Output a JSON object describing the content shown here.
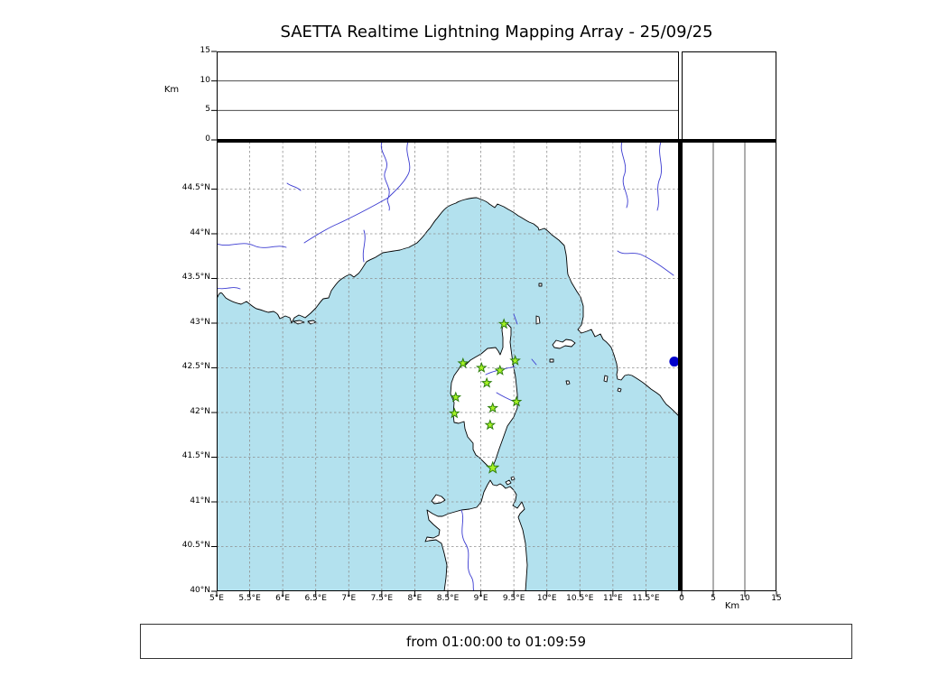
{
  "title": "SAETTA Realtime Lightning Mapping Array - 25/09/25",
  "footer": {
    "text": "from 01:00:00 to 01:09:59"
  },
  "top_panel": {
    "axis_label": "Km",
    "range_km": [
      0,
      15
    ],
    "ticks": [
      {
        "v": 0,
        "label": "0"
      },
      {
        "v": 5,
        "label": "5"
      },
      {
        "v": 10,
        "label": "10"
      },
      {
        "v": 15,
        "label": "15"
      }
    ],
    "gridlines": [
      5,
      10
    ]
  },
  "right_panel": {
    "axis_label": "Km",
    "range_km": [
      0,
      15
    ],
    "ticks": [
      {
        "v": 0,
        "label": "0"
      },
      {
        "v": 5,
        "label": "5"
      },
      {
        "v": 10,
        "label": "10"
      },
      {
        "v": 15,
        "label": "15"
      }
    ],
    "gridlines": [
      5,
      10
    ]
  },
  "map": {
    "lon_range": [
      5,
      12
    ],
    "lat_range": [
      40,
      45.03
    ],
    "lon_ticks": [
      {
        "v": 5,
        "label": "5°E"
      },
      {
        "v": 5.5,
        "label": "5.5°E"
      },
      {
        "v": 6,
        "label": "6°E"
      },
      {
        "v": 6.5,
        "label": "6.5°E"
      },
      {
        "v": 7,
        "label": "7°E"
      },
      {
        "v": 7.5,
        "label": "7.5°E"
      },
      {
        "v": 8,
        "label": "8°E"
      },
      {
        "v": 8.5,
        "label": "8.5°E"
      },
      {
        "v": 9,
        "label": "9°E"
      },
      {
        "v": 9.5,
        "label": "9.5°E"
      },
      {
        "v": 10,
        "label": "10°E"
      },
      {
        "v": 10.5,
        "label": "10.5°E"
      },
      {
        "v": 11,
        "label": "11°E"
      },
      {
        "v": 11.5,
        "label": "11.5°E"
      }
    ],
    "lat_ticks": [
      {
        "v": 44.5,
        "label": "44.5°N"
      },
      {
        "v": 44,
        "label": "44°N"
      },
      {
        "v": 43.5,
        "label": "43.5°N"
      },
      {
        "v": 43,
        "label": "43°N"
      },
      {
        "v": 42.5,
        "label": "42.5°N"
      },
      {
        "v": 42,
        "label": "42°N"
      },
      {
        "v": 41.5,
        "label": "41.5°N"
      },
      {
        "v": 41,
        "label": "41°N"
      },
      {
        "v": 40.5,
        "label": "40.5°N"
      },
      {
        "v": 40,
        "label": "40°N"
      }
    ],
    "stations": [
      {
        "lon": 9.35,
        "lat": 42.99
      },
      {
        "lon": 8.73,
        "lat": 42.55
      },
      {
        "lon": 9.01,
        "lat": 42.5
      },
      {
        "lon": 9.29,
        "lat": 42.47
      },
      {
        "lon": 9.52,
        "lat": 42.58
      },
      {
        "lon": 9.09,
        "lat": 42.33
      },
      {
        "lon": 8.62,
        "lat": 42.17
      },
      {
        "lon": 9.54,
        "lat": 42.12
      },
      {
        "lon": 8.6,
        "lat": 41.99
      },
      {
        "lon": 9.18,
        "lat": 42.05
      },
      {
        "lon": 9.14,
        "lat": 41.86
      },
      {
        "lon": 9.18,
        "lat": 41.38,
        "large": true
      }
    ],
    "other_marker": {
      "lon": 11.93,
      "lat": 42.57
    }
  },
  "colors": {
    "sea": "#b3e1ee",
    "land": "#ffffff",
    "coast": "#000000",
    "river": "#3b3bd1",
    "grid": "#8f8f8f",
    "station_fill": "#a6f326",
    "station_stroke": "#2e7d0e",
    "marker_blue": "#0000cc"
  },
  "chart_data": {
    "type": "scatter",
    "title": "SAETTA Realtime Lightning Mapping Array - 25/09/25",
    "xlim": [
      5,
      12
    ],
    "ylim": [
      40,
      45.03
    ],
    "altitude_axis_km": [
      0,
      15
    ],
    "series": [
      {
        "name": "SAETTA stations",
        "marker": "star",
        "points": [
          [
            9.35,
            42.99
          ],
          [
            8.73,
            42.55
          ],
          [
            9.01,
            42.5
          ],
          [
            9.29,
            42.47
          ],
          [
            9.52,
            42.58
          ],
          [
            9.09,
            42.33
          ],
          [
            8.62,
            42.17
          ],
          [
            9.54,
            42.12
          ],
          [
            8.6,
            41.99
          ],
          [
            9.18,
            42.05
          ],
          [
            9.14,
            41.86
          ],
          [
            9.18,
            41.38
          ]
        ]
      },
      {
        "name": "blue marker",
        "marker": "circle",
        "points": [
          [
            11.93,
            42.57
          ]
        ]
      }
    ]
  }
}
